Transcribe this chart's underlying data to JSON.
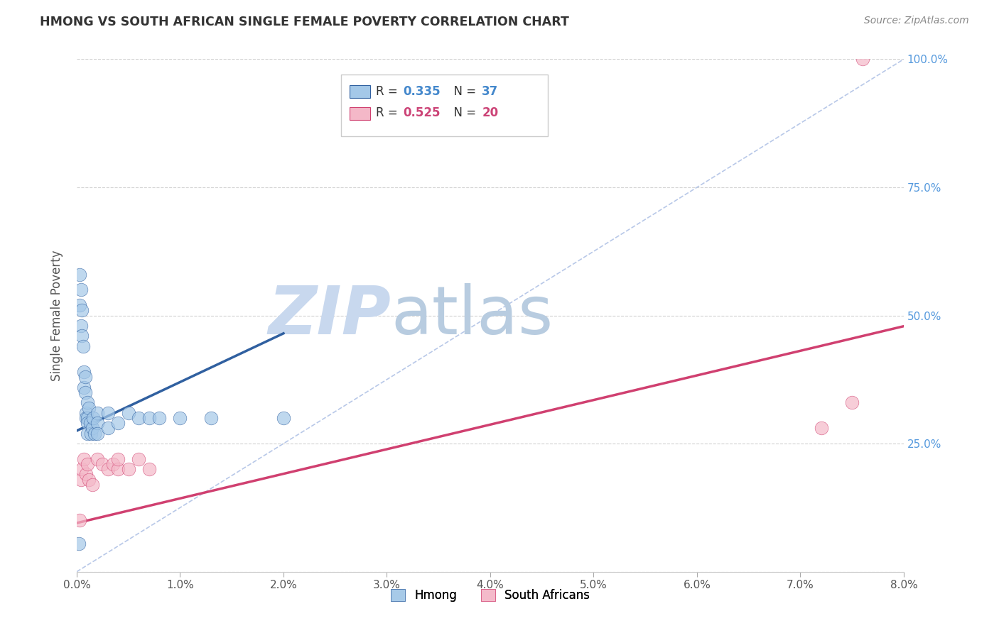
{
  "title": "HMONG VS SOUTH AFRICAN SINGLE FEMALE POVERTY CORRELATION CHART",
  "source": "Source: ZipAtlas.com",
  "ylabel": "Single Female Poverty",
  "xlim": [
    0.0,
    0.08
  ],
  "ylim": [
    0.0,
    1.0
  ],
  "hmong_R": 0.335,
  "hmong_N": 37,
  "sa_R": 0.525,
  "sa_N": 20,
  "hmong_color": "#a4c8e8",
  "sa_color": "#f4b8c8",
  "hmong_line_color": "#3060a0",
  "sa_line_color": "#d04070",
  "diagonal_color": "#b8c8e8",
  "background_color": "#ffffff",
  "watermark_zip": "ZIP",
  "watermark_atlas": "atlas",
  "watermark_color_zip": "#c8d8ee",
  "watermark_color_atlas": "#b8cce0",
  "hmong_x": [
    0.0002,
    0.0003,
    0.0003,
    0.0004,
    0.0004,
    0.0005,
    0.0005,
    0.0006,
    0.0007,
    0.0007,
    0.0008,
    0.0008,
    0.0009,
    0.0009,
    0.001,
    0.001,
    0.001,
    0.001,
    0.0012,
    0.0013,
    0.0014,
    0.0015,
    0.0016,
    0.0017,
    0.002,
    0.002,
    0.002,
    0.003,
    0.003,
    0.004,
    0.005,
    0.006,
    0.007,
    0.008,
    0.01,
    0.013,
    0.02
  ],
  "hmong_y": [
    0.055,
    0.58,
    0.52,
    0.55,
    0.48,
    0.51,
    0.46,
    0.44,
    0.39,
    0.36,
    0.38,
    0.35,
    0.31,
    0.3,
    0.33,
    0.3,
    0.29,
    0.27,
    0.32,
    0.29,
    0.27,
    0.28,
    0.3,
    0.27,
    0.31,
    0.29,
    0.27,
    0.31,
    0.28,
    0.29,
    0.31,
    0.3,
    0.3,
    0.3,
    0.3,
    0.3,
    0.3
  ],
  "sa_x": [
    0.0003,
    0.0004,
    0.0005,
    0.0007,
    0.0009,
    0.001,
    0.0012,
    0.0015,
    0.002,
    0.0025,
    0.003,
    0.0035,
    0.004,
    0.004,
    0.005,
    0.006,
    0.007,
    0.072,
    0.075,
    0.076
  ],
  "sa_y": [
    0.1,
    0.18,
    0.2,
    0.22,
    0.19,
    0.21,
    0.18,
    0.17,
    0.22,
    0.21,
    0.2,
    0.21,
    0.2,
    0.22,
    0.2,
    0.22,
    0.2,
    0.28,
    0.33,
    1.0
  ]
}
